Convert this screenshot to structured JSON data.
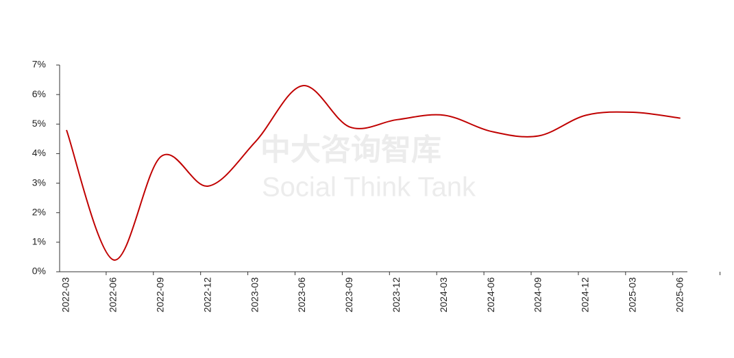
{
  "chart_data": {
    "type": "line",
    "watermark": [
      "中大咨询智库",
      "Social Think Tank"
    ],
    "categories": [
      "2022-03",
      "2022-06",
      "2022-09",
      "2022-12",
      "2023-03",
      "2023-06",
      "2023-09",
      "2023-12",
      "2024-03",
      "2024-06",
      "2024-09",
      "2024-12",
      "2025-03",
      "2025-06"
    ],
    "series": [
      {
        "color": "#c00000",
        "values": [
          4.8,
          0.4,
          3.9,
          2.9,
          4.4,
          6.3,
          4.9,
          5.15,
          5.3,
          4.75,
          4.6,
          5.3,
          5.4,
          5.2
        ]
      }
    ],
    "ylim": [
      0,
      7
    ],
    "yticks": [
      {
        "value": 0,
        "label": "0%"
      },
      {
        "value": 1,
        "label": "1%"
      },
      {
        "value": 2,
        "label": "2%"
      },
      {
        "value": 3,
        "label": "3%"
      },
      {
        "value": 4,
        "label": "4%"
      },
      {
        "value": 5,
        "label": "5%"
      },
      {
        "value": 6,
        "label": "6%"
      },
      {
        "value": 7,
        "label": "7%"
      }
    ],
    "smooth": true
  }
}
